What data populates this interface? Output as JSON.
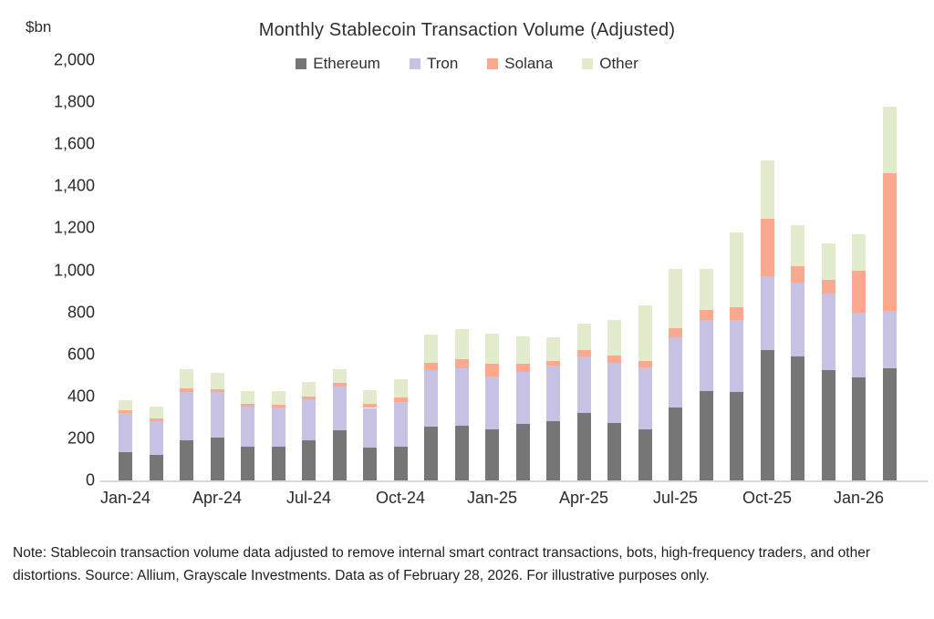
{
  "header": {
    "units_label": "$bn",
    "title": "Monthly Stablecoin Transaction Volume (Adjusted)"
  },
  "chart_data": {
    "type": "bar",
    "stacked": true,
    "title": "Monthly Stablecoin Transaction Volume (Adjusted)",
    "ylabel": "$bn",
    "xlabel": "",
    "ylim": [
      0,
      2000
    ],
    "ytick_step": 200,
    "grid": false,
    "legend_position": "top",
    "x_tick_step": 3,
    "categories": [
      "Jan-24",
      "Feb-24",
      "Mar-24",
      "Apr-24",
      "May-24",
      "Jun-24",
      "Jul-24",
      "Aug-24",
      "Sep-24",
      "Oct-24",
      "Nov-24",
      "Dec-24",
      "Jan-25",
      "Feb-25",
      "Mar-25",
      "Apr-25",
      "May-25",
      "Jun-25",
      "Jul-25",
      "Aug-25",
      "Sep-25",
      "Oct-25",
      "Nov-25",
      "Dec-25",
      "Jan-26",
      "Feb-26"
    ],
    "x_tick_labels_shown": [
      "Jan-24",
      "Apr-24",
      "Jul-24",
      "Oct-24",
      "Jan-25",
      "Apr-25",
      "Jul-25",
      "Oct-25",
      "Jan-26"
    ],
    "series": [
      {
        "name": "Ethereum",
        "color": "#767676",
        "values": [
          135,
          120,
          190,
          205,
          160,
          160,
          190,
          240,
          155,
          160,
          255,
          260,
          245,
          270,
          280,
          320,
          275,
          245,
          345,
          425,
          420,
          620,
          590,
          525,
          490,
          535
        ]
      },
      {
        "name": "Tron",
        "color": "#c7c2e3",
        "values": [
          185,
          160,
          230,
          215,
          190,
          185,
          195,
          205,
          190,
          215,
          270,
          275,
          250,
          245,
          265,
          270,
          285,
          295,
          335,
          340,
          345,
          350,
          350,
          365,
          310,
          270
        ]
      },
      {
        "name": "Solana",
        "color": "#faa98e",
        "values": [
          15,
          15,
          20,
          15,
          15,
          15,
          15,
          20,
          20,
          20,
          35,
          40,
          60,
          40,
          25,
          30,
          35,
          30,
          45,
          45,
          60,
          275,
          80,
          65,
          200,
          655
        ]
      },
      {
        "name": "Other",
        "color": "#e2ebcb",
        "values": [
          45,
          55,
          90,
          75,
          60,
          65,
          70,
          65,
          65,
          85,
          135,
          145,
          145,
          130,
          110,
          125,
          170,
          265,
          280,
          195,
          355,
          280,
          195,
          175,
          170,
          320
        ]
      }
    ],
    "totals": [
      380,
      350,
      530,
      510,
      425,
      425,
      470,
      530,
      430,
      480,
      695,
      720,
      700,
      685,
      680,
      745,
      765,
      835,
      1005,
      1005,
      1180,
      1525,
      1215,
      1130,
      1170,
      1780
    ]
  },
  "note": {
    "text": "Note: Stablecoin transaction volume data adjusted to remove internal smart contract transactions, bots, high-frequency traders, and other distortions. Source: Allium, Grayscale Investments. Data as of February 28, 2026. For illustrative purposes only."
  }
}
